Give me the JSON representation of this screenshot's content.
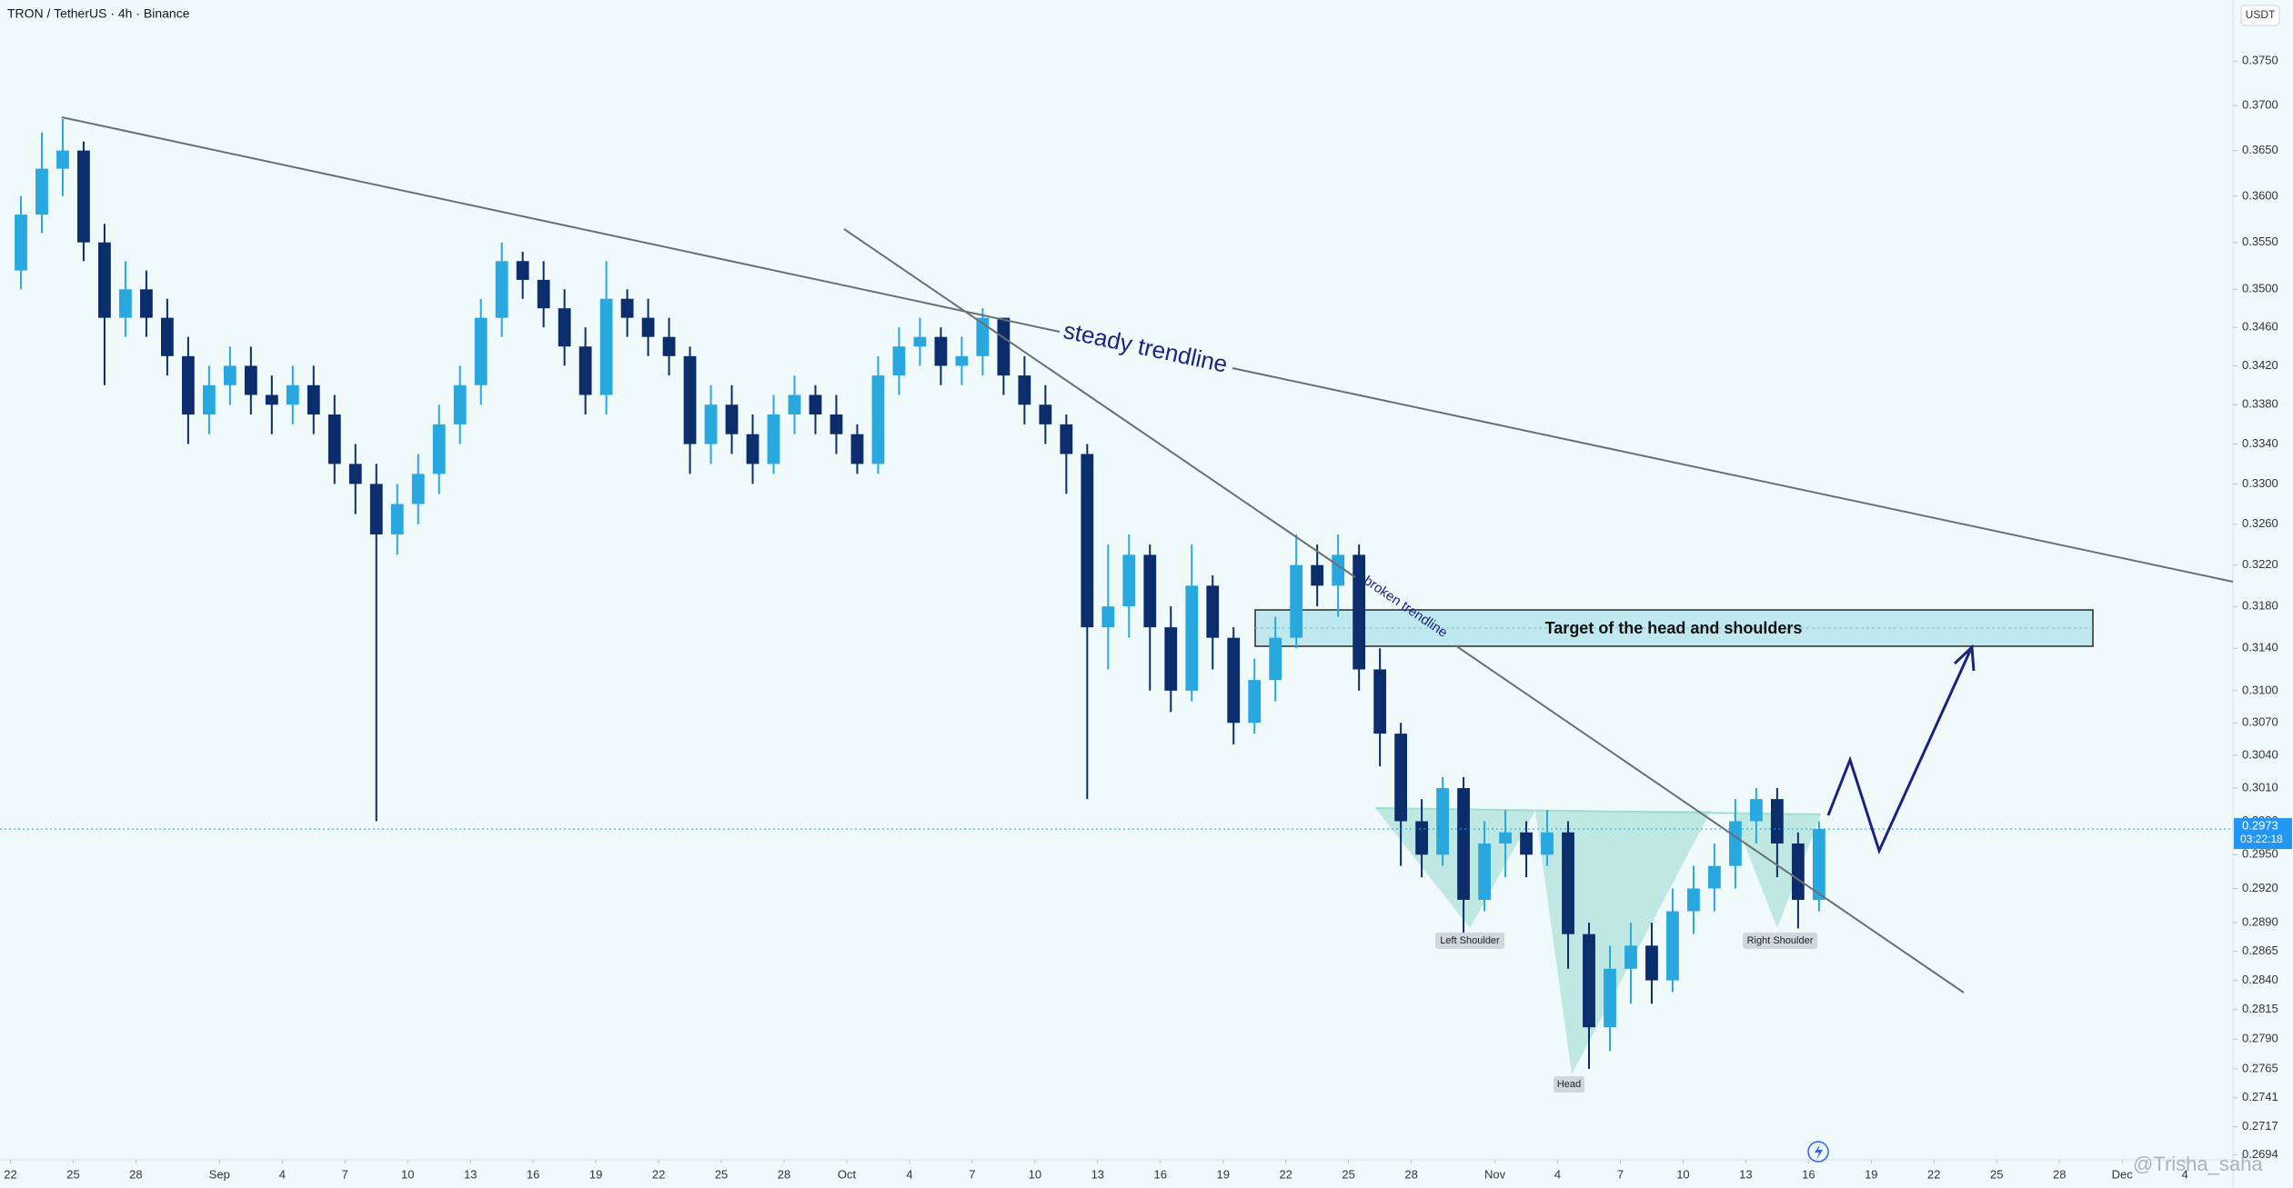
{
  "chart_data": {
    "type": "candlestick",
    "title": "TRON / TetherUS · 4h · Binance",
    "y_axis_label": "USDT",
    "log": true,
    "grid": false,
    "up_color": "#29a8e0",
    "down_color": "#0c2d6b",
    "xlim": [
      -0.5,
      106.3
    ],
    "ylim": [
      0.269,
      0.382
    ],
    "xticks": [
      {
        "value": 0,
        "label": "22"
      },
      {
        "value": 3,
        "label": "25"
      },
      {
        "value": 6,
        "label": "28"
      },
      {
        "value": 10,
        "label": "Sep"
      },
      {
        "value": 13,
        "label": "4"
      },
      {
        "value": 16,
        "label": "7"
      },
      {
        "value": 19,
        "label": "10"
      },
      {
        "value": 22,
        "label": "13"
      },
      {
        "value": 25,
        "label": "16"
      },
      {
        "value": 28,
        "label": "19"
      },
      {
        "value": 31,
        "label": "22"
      },
      {
        "value": 34,
        "label": "25"
      },
      {
        "value": 37,
        "label": "28"
      },
      {
        "value": 40,
        "label": "Oct"
      },
      {
        "value": 43,
        "label": "4"
      },
      {
        "value": 46,
        "label": "7"
      },
      {
        "value": 49,
        "label": "10"
      },
      {
        "value": 52,
        "label": "13"
      },
      {
        "value": 55,
        "label": "16"
      },
      {
        "value": 58,
        "label": "19"
      },
      {
        "value": 61,
        "label": "22"
      },
      {
        "value": 64,
        "label": "25"
      },
      {
        "value": 67,
        "label": "28"
      },
      {
        "value": 71,
        "label": "Nov"
      },
      {
        "value": 74,
        "label": "4"
      },
      {
        "value": 77,
        "label": "7"
      },
      {
        "value": 80,
        "label": "10"
      },
      {
        "value": 83,
        "label": "13"
      },
      {
        "value": 86,
        "label": "16"
      },
      {
        "value": 89,
        "label": "19"
      },
      {
        "value": 92,
        "label": "22"
      },
      {
        "value": 95,
        "label": "25"
      },
      {
        "value": 98,
        "label": "28"
      },
      {
        "value": 101,
        "label": "Dec"
      },
      {
        "value": 104,
        "label": "4"
      }
    ],
    "yticks": [
      {
        "value": 0.375,
        "label": "0.3750"
      },
      {
        "value": 0.37,
        "label": "0.3700"
      },
      {
        "value": 0.365,
        "label": "0.3650"
      },
      {
        "value": 0.36,
        "label": "0.3600"
      },
      {
        "value": 0.355,
        "label": "0.3550"
      },
      {
        "value": 0.35,
        "label": "0.3500"
      },
      {
        "value": 0.346,
        "label": "0.3460"
      },
      {
        "value": 0.342,
        "label": "0.3420"
      },
      {
        "value": 0.338,
        "label": "0.3380"
      },
      {
        "value": 0.334,
        "label": "0.3340"
      },
      {
        "value": 0.33,
        "label": "0.3300"
      },
      {
        "value": 0.326,
        "label": "0.3260"
      },
      {
        "value": 0.322,
        "label": "0.3220"
      },
      {
        "value": 0.318,
        "label": "0.3180"
      },
      {
        "value": 0.314,
        "label": "0.3140"
      },
      {
        "value": 0.31,
        "label": "0.3100"
      },
      {
        "value": 0.307,
        "label": "0.3070"
      },
      {
        "value": 0.304,
        "label": "0.3040"
      },
      {
        "value": 0.301,
        "label": "0.3010"
      },
      {
        "value": 0.298,
        "label": "0.2980"
      },
      {
        "value": 0.295,
        "label": "0.2950"
      },
      {
        "value": 0.292,
        "label": "0.2920"
      },
      {
        "value": 0.289,
        "label": "0.2890"
      },
      {
        "value": 0.2865,
        "label": "0.2865"
      },
      {
        "value": 0.284,
        "label": "0.2840"
      },
      {
        "value": 0.2815,
        "label": "0.2815"
      },
      {
        "value": 0.279,
        "label": "0.2790"
      },
      {
        "value": 0.2765,
        "label": "0.2765"
      },
      {
        "value": 0.2741,
        "label": "0.2741"
      },
      {
        "value": 0.2717,
        "label": "0.2717"
      },
      {
        "value": 0.2694,
        "label": "0.2694"
      }
    ],
    "x": [
      0.5,
      1.5,
      2.5,
      3.5,
      4.5,
      5.5,
      6.5,
      7.5,
      8.5,
      9.5,
      10.5,
      11.5,
      12.5,
      13.5,
      14.5,
      15.5,
      16.5,
      17.5,
      18.5,
      19.5,
      20.5,
      21.5,
      22.5,
      23.5,
      24.5,
      25.5,
      26.5,
      27.5,
      28.5,
      29.5,
      30.5,
      31.5,
      32.5,
      33.5,
      34.5,
      35.5,
      36.5,
      37.5,
      38.5,
      39.5,
      40.5,
      41.5,
      42.5,
      43.5,
      44.5,
      45.5,
      46.5,
      47.5,
      48.5,
      49.5,
      50.5,
      51.5,
      52.5,
      53.5,
      54.5,
      55.5,
      56.5,
      57.5,
      58.5,
      59.5,
      60.5,
      61.5,
      62.5,
      63.5,
      64.5,
      65.5,
      66.5,
      67.5,
      68.5,
      69.5,
      70.5,
      71.5,
      72.5,
      73.5,
      74.5,
      75.5,
      76.5,
      77.5,
      78.5,
      79.5,
      80.5,
      81.5,
      82.5,
      83.5,
      84.5,
      85.5,
      86.5
    ],
    "open": [
      0.352,
      0.358,
      0.363,
      0.365,
      0.355,
      0.347,
      0.35,
      0.347,
      0.343,
      0.337,
      0.34,
      0.342,
      0.339,
      0.338,
      0.34,
      0.337,
      0.332,
      0.33,
      0.325,
      0.328,
      0.331,
      0.336,
      0.34,
      0.347,
      0.353,
      0.351,
      0.348,
      0.344,
      0.339,
      0.349,
      0.347,
      0.345,
      0.343,
      0.334,
      0.338,
      0.335,
      0.332,
      0.337,
      0.339,
      0.337,
      0.335,
      0.332,
      0.341,
      0.344,
      0.345,
      0.342,
      0.343,
      0.347,
      0.341,
      0.338,
      0.336,
      0.333,
      0.316,
      0.318,
      0.323,
      0.316,
      0.31,
      0.32,
      0.315,
      0.307,
      0.311,
      0.315,
      0.322,
      0.32,
      0.323,
      0.312,
      0.306,
      0.298,
      0.295,
      0.301,
      0.291,
      0.296,
      0.297,
      0.295,
      0.297,
      0.288,
      0.28,
      0.285,
      0.287,
      0.284,
      0.29,
      0.292,
      0.294,
      0.298,
      0.3,
      0.296,
      0.291
    ],
    "high": [
      0.36,
      0.367,
      0.3685,
      0.366,
      0.357,
      0.353,
      0.352,
      0.349,
      0.345,
      0.342,
      0.344,
      0.344,
      0.341,
      0.342,
      0.342,
      0.339,
      0.334,
      0.332,
      0.33,
      0.333,
      0.338,
      0.342,
      0.349,
      0.355,
      0.354,
      0.353,
      0.35,
      0.346,
      0.353,
      0.35,
      0.349,
      0.347,
      0.344,
      0.34,
      0.34,
      0.337,
      0.339,
      0.341,
      0.34,
      0.339,
      0.336,
      0.343,
      0.346,
      0.347,
      0.346,
      0.345,
      0.348,
      0.347,
      0.343,
      0.34,
      0.337,
      0.334,
      0.324,
      0.325,
      0.324,
      0.318,
      0.324,
      0.321,
      0.316,
      0.313,
      0.317,
      0.325,
      0.324,
      0.325,
      0.324,
      0.314,
      0.307,
      0.3,
      0.302,
      0.302,
      0.298,
      0.299,
      0.298,
      0.299,
      0.298,
      0.289,
      0.287,
      0.289,
      0.289,
      0.292,
      0.294,
      0.296,
      0.3,
      0.301,
      0.301,
      0.297,
      0.298
    ],
    "low": [
      0.35,
      0.356,
      0.36,
      0.353,
      0.34,
      0.345,
      0.345,
      0.341,
      0.334,
      0.335,
      0.338,
      0.337,
      0.335,
      0.336,
      0.335,
      0.33,
      0.327,
      0.298,
      0.323,
      0.326,
      0.329,
      0.334,
      0.338,
      0.345,
      0.349,
      0.346,
      0.342,
      0.337,
      0.337,
      0.345,
      0.343,
      0.341,
      0.331,
      0.332,
      0.333,
      0.33,
      0.331,
      0.335,
      0.335,
      0.333,
      0.331,
      0.331,
      0.339,
      0.342,
      0.34,
      0.34,
      0.341,
      0.339,
      0.336,
      0.334,
      0.329,
      0.3,
      0.312,
      0.315,
      0.31,
      0.308,
      0.309,
      0.312,
      0.305,
      0.306,
      0.309,
      0.314,
      0.318,
      0.317,
      0.31,
      0.303,
      0.294,
      0.293,
      0.294,
      0.288,
      0.29,
      0.293,
      0.293,
      0.294,
      0.285,
      0.2765,
      0.278,
      0.282,
      0.282,
      0.283,
      0.288,
      0.29,
      0.292,
      0.296,
      0.293,
      0.2885,
      0.29
    ],
    "close": [
      0.358,
      0.363,
      0.365,
      0.355,
      0.347,
      0.35,
      0.347,
      0.343,
      0.337,
      0.34,
      0.342,
      0.339,
      0.338,
      0.34,
      0.337,
      0.332,
      0.33,
      0.325,
      0.328,
      0.331,
      0.336,
      0.34,
      0.347,
      0.353,
      0.351,
      0.348,
      0.344,
      0.339,
      0.349,
      0.347,
      0.345,
      0.343,
      0.334,
      0.338,
      0.335,
      0.332,
      0.337,
      0.339,
      0.337,
      0.335,
      0.332,
      0.341,
      0.344,
      0.345,
      0.342,
      0.343,
      0.347,
      0.341,
      0.338,
      0.336,
      0.333,
      0.316,
      0.318,
      0.323,
      0.316,
      0.31,
      0.32,
      0.315,
      0.307,
      0.311,
      0.315,
      0.322,
      0.32,
      0.323,
      0.312,
      0.306,
      0.298,
      0.295,
      0.301,
      0.291,
      0.296,
      0.297,
      0.295,
      0.297,
      0.288,
      0.28,
      0.285,
      0.287,
      0.284,
      0.29,
      0.292,
      0.294,
      0.298,
      0.3,
      0.296,
      0.291,
      0.2973
    ],
    "last_price": 0.2973,
    "countdown": "03:22:18",
    "annotations": [
      "steady trendline",
      "broken trendline",
      "Target of the head and shoulders",
      "Left Shoulder",
      "Head",
      "Right Shoulder"
    ],
    "watermark": "@Trisha_saha"
  }
}
